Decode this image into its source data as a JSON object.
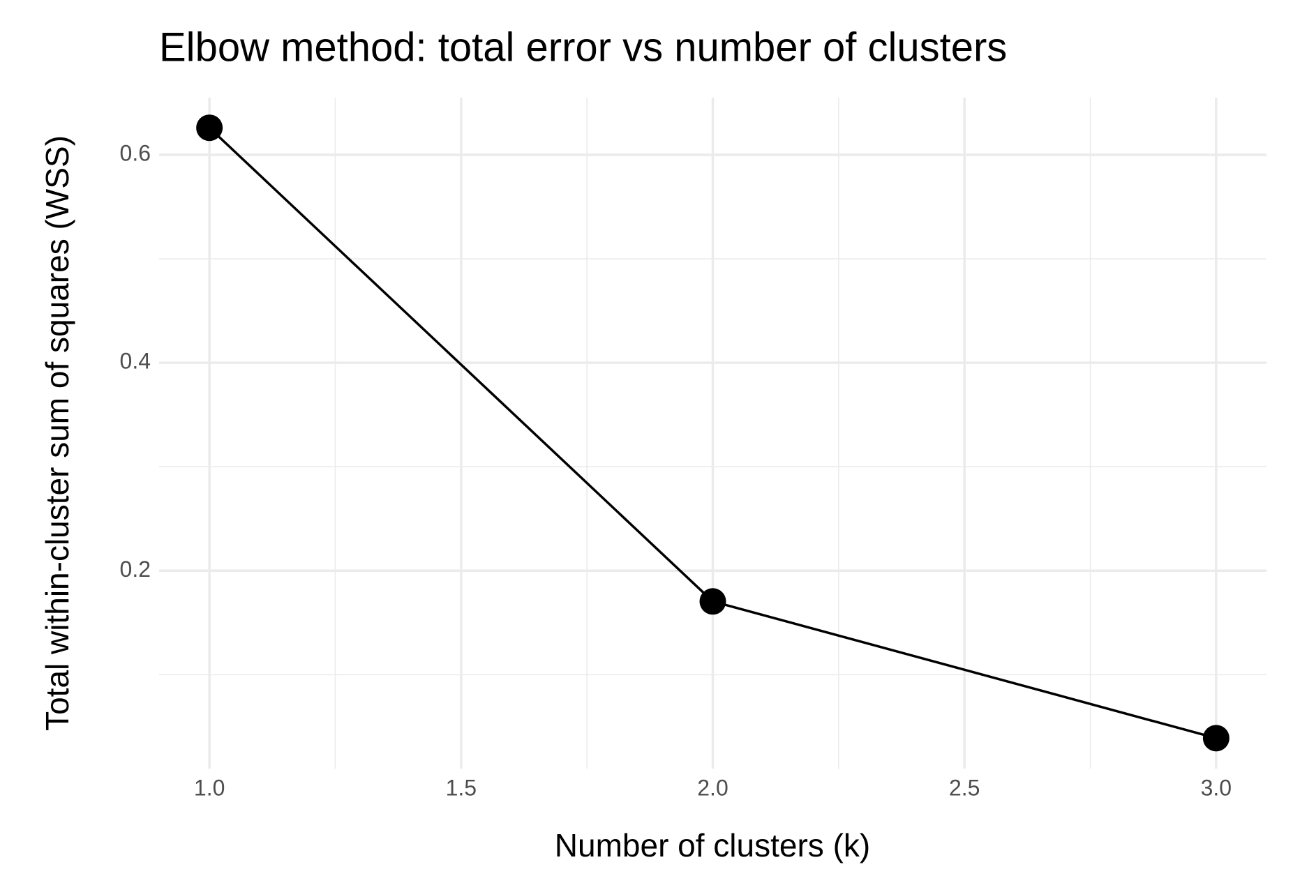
{
  "chart_data": {
    "type": "line",
    "title": "Elbow method: total error vs number of clusters",
    "x_label": "Number of clusters (k)",
    "y_label": "Total within-cluster sum of squares (WSS)",
    "x": [
      1,
      2,
      3
    ],
    "series": [
      {
        "color": "#000000",
        "values": [
          0.626,
          0.1705,
          0.039
        ]
      }
    ],
    "xlim": [
      0.9,
      3.1
    ],
    "ylim": [
      0.0097,
      0.655
    ],
    "xticks": [
      {
        "value": 1,
        "label": "1.0"
      },
      {
        "value": 1.5,
        "label": "1.5"
      },
      {
        "value": 2,
        "label": "2.0"
      },
      {
        "value": 2.5,
        "label": "2.5"
      },
      {
        "value": 3,
        "label": "3.0"
      }
    ],
    "yticks": [
      0.2,
      0.4,
      0.6
    ],
    "minor_xticks": [
      1.25,
      1.75,
      2.25,
      2.75
    ],
    "minor_yticks": [
      0.1,
      0.3,
      0.5
    ],
    "grid": true
  }
}
